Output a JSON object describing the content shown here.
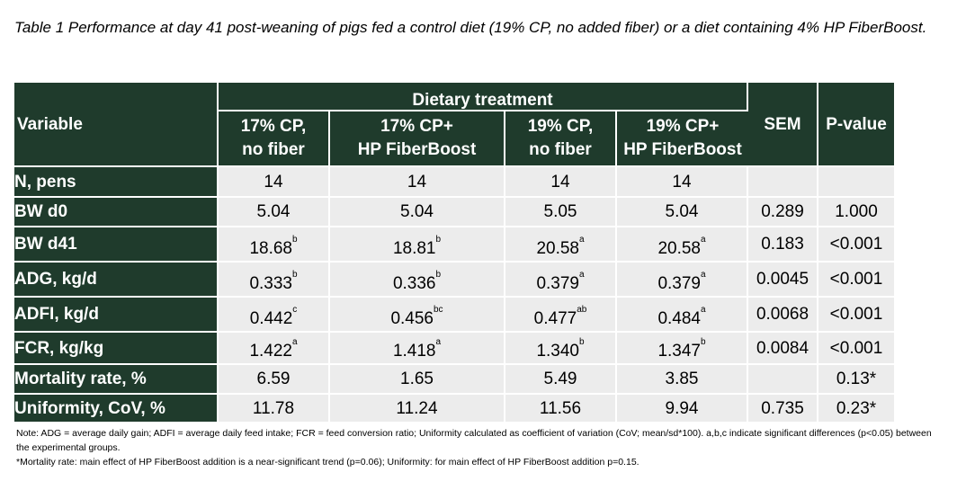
{
  "caption": "Table 1 Performance at day 41 post-weaning of pigs fed a control diet (19% CP, no added fiber) or a diet containing 4% HP FiberBoost.",
  "header": {
    "variable": "Variable",
    "group": "Dietary treatment",
    "treatments": [
      {
        "line1": "17% CP,",
        "line2": "no fiber"
      },
      {
        "line1": "17% CP+",
        "line2": "HP FiberBoost"
      },
      {
        "line1": "19% CP,",
        "line2": "no fiber"
      },
      {
        "line1": "19% CP+",
        "line2": "HP FiberBoost"
      }
    ],
    "sem": "SEM",
    "pvalue": "P-value"
  },
  "rows": [
    {
      "label": "N, pens",
      "cells": [
        {
          "v": "14",
          "s": ""
        },
        {
          "v": "14",
          "s": ""
        },
        {
          "v": "14",
          "s": ""
        },
        {
          "v": "14",
          "s": ""
        }
      ],
      "sem": "",
      "p": ""
    },
    {
      "label": "BW d0",
      "cells": [
        {
          "v": "5.04",
          "s": ""
        },
        {
          "v": "5.04",
          "s": ""
        },
        {
          "v": "5.05",
          "s": ""
        },
        {
          "v": "5.04",
          "s": ""
        }
      ],
      "sem": "0.289",
      "p": "1.000"
    },
    {
      "label": "BW d41",
      "cells": [
        {
          "v": "18.68",
          "s": "b"
        },
        {
          "v": "18.81",
          "s": "b"
        },
        {
          "v": "20.58",
          "s": "a"
        },
        {
          "v": "20.58",
          "s": "a"
        }
      ],
      "sem": "0.183",
      "p": "<0.001"
    },
    {
      "label": "ADG, kg/d",
      "cells": [
        {
          "v": "0.333",
          "s": "b"
        },
        {
          "v": "0.336",
          "s": "b"
        },
        {
          "v": "0.379",
          "s": "a"
        },
        {
          "v": "0.379",
          "s": "a"
        }
      ],
      "sem": "0.0045",
      "p": "<0.001"
    },
    {
      "label": "ADFI, kg/d",
      "cells": [
        {
          "v": "0.442",
          "s": "c"
        },
        {
          "v": "0.456",
          "s": "bc"
        },
        {
          "v": "0.477",
          "s": "ab"
        },
        {
          "v": "0.484",
          "s": "a"
        }
      ],
      "sem": "0.0068",
      "p": "<0.001"
    },
    {
      "label": "FCR, kg/kg",
      "cells": [
        {
          "v": "1.422",
          "s": "a"
        },
        {
          "v": "1.418",
          "s": "a"
        },
        {
          "v": "1.340",
          "s": "b"
        },
        {
          "v": "1.347",
          "s": "b"
        }
      ],
      "sem": "0.0084",
      "p": "<0.001"
    },
    {
      "label": "Mortality rate, %",
      "cells": [
        {
          "v": "6.59",
          "s": ""
        },
        {
          "v": "1.65",
          "s": ""
        },
        {
          "v": "5.49",
          "s": ""
        },
        {
          "v": "3.85",
          "s": ""
        }
      ],
      "sem": "",
      "p": "0.13*"
    },
    {
      "label": "Uniformity, CoV, %",
      "cells": [
        {
          "v": "11.78",
          "s": ""
        },
        {
          "v": "11.24",
          "s": ""
        },
        {
          "v": "11.56",
          "s": ""
        },
        {
          "v": "9.94",
          "s": ""
        }
      ],
      "sem": "0.735",
      "p": "0.23*"
    }
  ],
  "notes": [
    "Note: ADG = average daily gain; ADFI = average daily feed intake; FCR = feed conversion ratio; Uniformity calculated as coefficient of variation (CoV; mean/sd*100). a,b,c indicate significant differences (p<0.05) between the experimental groups.",
    "*Mortality rate: main effect of HP FiberBoost addition is a near-significant trend (p=0.06); Uniformity: for main effect of HP FiberBoost addition p=0.15."
  ],
  "colors": {
    "header_bg": "#1f3b2c",
    "cell_bg": "#ececec"
  }
}
